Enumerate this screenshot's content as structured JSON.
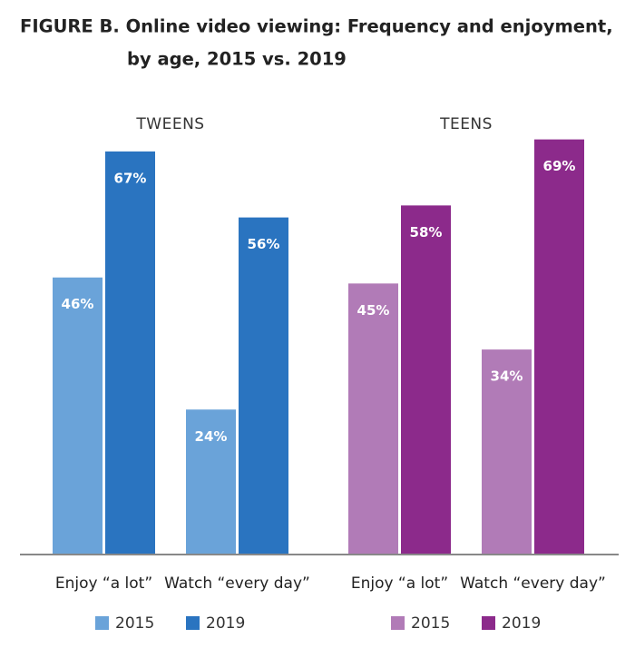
{
  "title": [
    "FIGURE B. Online video viewing: Frequency and enjoyment,",
    "by age, 2015 vs. 2019"
  ],
  "chart_data": [
    {
      "type": "bar",
      "subtitle": "TWEENS",
      "categories": [
        "Enjoy “a lot”",
        "Watch “every day”"
      ],
      "ylim": [
        0,
        70
      ],
      "series": [
        {
          "name": "2015",
          "color": "#6aa3d9",
          "values": [
            46,
            24
          ],
          "value_labels": [
            "46%",
            "24%"
          ]
        },
        {
          "name": "2019",
          "color": "#2a74c0",
          "values": [
            67,
            56
          ],
          "value_labels": [
            "67%",
            "56%"
          ]
        }
      ]
    },
    {
      "type": "bar",
      "subtitle": "TEENS",
      "categories": [
        "Enjoy “a lot”",
        "Watch “every day”"
      ],
      "ylim": [
        0,
        70
      ],
      "series": [
        {
          "name": "2015",
          "color": "#b17bb7",
          "values": [
            45,
            34
          ],
          "value_labels": [
            "45%",
            "34%"
          ]
        },
        {
          "name": "2019",
          "color": "#8c2a8b",
          "values": [
            58,
            69
          ],
          "value_labels": [
            "58%",
            "69%"
          ]
        }
      ]
    }
  ]
}
